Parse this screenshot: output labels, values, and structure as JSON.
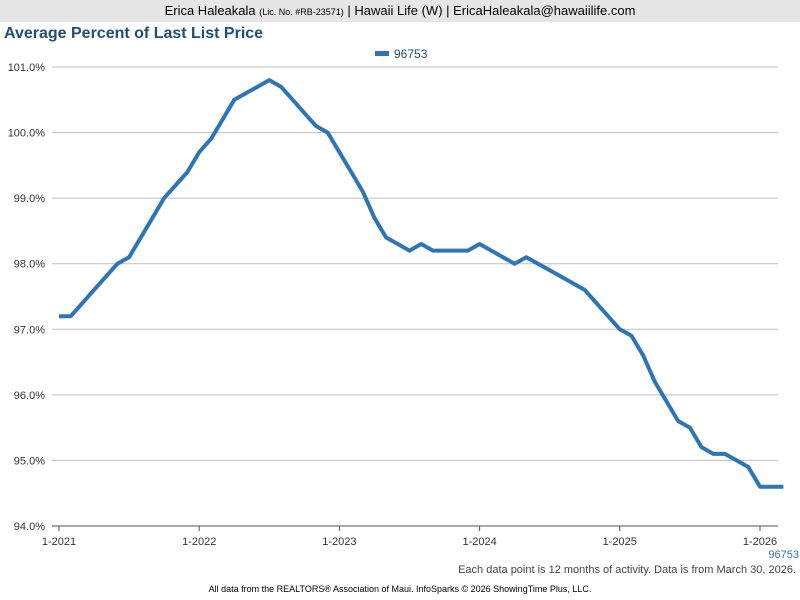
{
  "header": {
    "agent_name": "Erica Haleakala",
    "license": "(Lic. No. #RB-23571)",
    "rest": "| Hawaii Life (W) | EricaHaleakala@hawaiilife.com"
  },
  "footnote": "Each data point is 12 months of activity. Data is from March 30, 2026.",
  "footer": "All data from the REALTORS® Association of Maui. InfoSparks © 2026 ShowingTime Plus, LLC.",
  "colors": {
    "series": "#2e75b6",
    "title": "#1f4e79",
    "grid": "#bfbfbf",
    "header_bg": "#e6e6e6"
  },
  "chart_data": {
    "type": "line",
    "title": "Average Percent of Last List Price",
    "legend_position": "top-center",
    "grid": true,
    "ylim": [
      94.0,
      101.0
    ],
    "y_ticks": [
      {
        "value": 94,
        "label": "94.0%"
      },
      {
        "value": 95,
        "label": "95.0%"
      },
      {
        "value": 96,
        "label": "96.0%"
      },
      {
        "value": 97,
        "label": "97.0%"
      },
      {
        "value": 98,
        "label": "98.0%"
      },
      {
        "value": 99,
        "label": "99.0%"
      },
      {
        "value": 100,
        "label": "100.0%"
      },
      {
        "value": 101,
        "label": "101.0%"
      }
    ],
    "x_ticks": [
      "1-2021",
      "1-2022",
      "1-2023",
      "1-2024",
      "1-2025",
      "1-2026"
    ],
    "x_range": [
      "1-2021",
      "3-2026"
    ],
    "end_label": "96753",
    "series": [
      {
        "name": "96753",
        "x": [
          "1-2021",
          "2-2021",
          "3-2021",
          "4-2021",
          "5-2021",
          "6-2021",
          "7-2021",
          "8-2021",
          "9-2021",
          "10-2021",
          "11-2021",
          "12-2021",
          "1-2022",
          "2-2022",
          "3-2022",
          "4-2022",
          "5-2022",
          "6-2022",
          "7-2022",
          "8-2022",
          "9-2022",
          "10-2022",
          "11-2022",
          "12-2022",
          "1-2023",
          "2-2023",
          "3-2023",
          "4-2023",
          "5-2023",
          "6-2023",
          "7-2023",
          "8-2023",
          "9-2023",
          "10-2023",
          "11-2023",
          "12-2023",
          "1-2024",
          "2-2024",
          "3-2024",
          "4-2024",
          "5-2024",
          "6-2024",
          "7-2024",
          "8-2024",
          "9-2024",
          "10-2024",
          "11-2024",
          "12-2024",
          "1-2025",
          "2-2025",
          "3-2025",
          "4-2025",
          "5-2025",
          "6-2025",
          "7-2025",
          "8-2025",
          "9-2025",
          "10-2025",
          "11-2025",
          "12-2025",
          "1-2026",
          "2-2026",
          "3-2026"
        ],
        "values": [
          97.2,
          97.2,
          97.4,
          97.6,
          97.8,
          98.0,
          98.1,
          98.4,
          98.7,
          99.0,
          99.2,
          99.4,
          99.7,
          99.9,
          100.2,
          100.5,
          100.6,
          100.7,
          100.8,
          100.7,
          100.5,
          100.3,
          100.1,
          100.0,
          99.7,
          99.4,
          99.1,
          98.7,
          98.4,
          98.3,
          98.2,
          98.3,
          98.2,
          98.2,
          98.2,
          98.2,
          98.3,
          98.2,
          98.1,
          98.0,
          98.1,
          98.0,
          97.9,
          97.8,
          97.7,
          97.6,
          97.4,
          97.2,
          97.0,
          96.9,
          96.6,
          96.2,
          95.9,
          95.6,
          95.5,
          95.2,
          95.1,
          95.1,
          95.0,
          94.9,
          94.6,
          94.6,
          94.6
        ]
      }
    ]
  }
}
